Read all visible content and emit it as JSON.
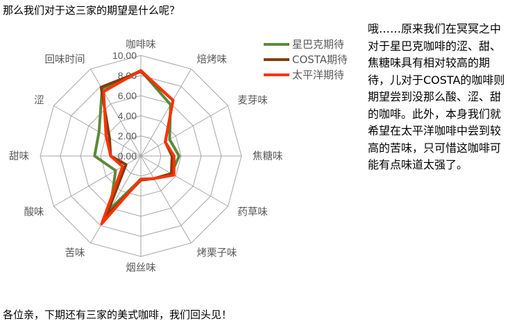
{
  "intro_text": "那么我们对于这三家的期望是什么呢？",
  "side_text": "哦……原来我们在冥冥之中对于星巴克咖啡的涩、甜、焦糖味具有相对较高的期待，儿对于COSTA的咖啡则期望尝到没那么酸、涩、甜的咖啡。此外，本身我们就希望在太平洋咖啡中尝到较高的苦味，只可惜这咖啡可能有点味道太强了。",
  "outro_text": "各位亲，下期还有三家的美式咖啡，我们回头见！",
  "chart_data": {
    "type": "radar",
    "categories": [
      "咖啡味",
      "焙烤味",
      "麦芽味",
      "焦糖味",
      "药草味",
      "烤栗子味",
      "烟丝味",
      "苦味",
      "酸味",
      "甜味",
      "涩",
      "回味时间"
    ],
    "ylim": [
      0,
      10
    ],
    "ticks": [
      "0.00",
      "2.00",
      "4.00",
      "6.00",
      "8.00",
      "10.00"
    ],
    "tick_values": [
      0,
      2,
      4,
      6,
      8,
      10
    ],
    "legend_position": "top-right",
    "series": [
      {
        "name": "星巴克期待",
        "color": "#5b8a3a",
        "values": [
          8.5,
          5.9,
          3.3,
          3.8,
          3.5,
          2.6,
          2.3,
          6.1,
          2.9,
          4.6,
          4.8,
          7.7
        ]
      },
      {
        "name": "COSTA期待",
        "color": "#843c0c",
        "values": [
          8.4,
          6.4,
          2.8,
          3.1,
          3.5,
          2.6,
          2.4,
          6.9,
          1.7,
          3.0,
          3.6,
          7.9
        ]
      },
      {
        "name": "太平洋期待",
        "color": "#ff3300",
        "values": [
          8.5,
          6.4,
          2.8,
          3.3,
          3.8,
          2.6,
          2.3,
          7.8,
          2.1,
          3.0,
          4.0,
          7.4
        ]
      }
    ]
  }
}
